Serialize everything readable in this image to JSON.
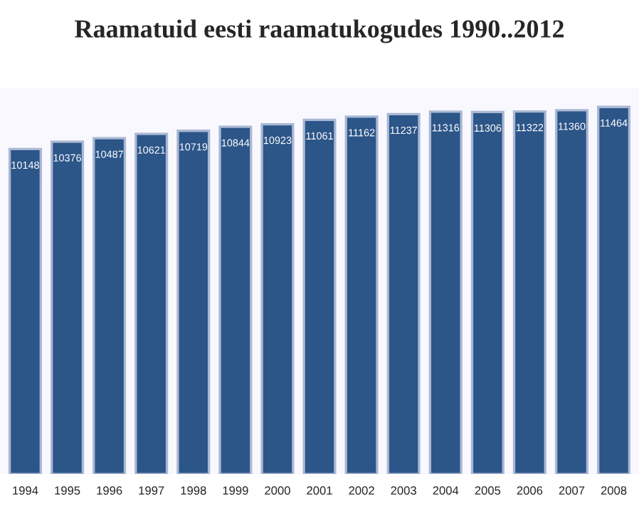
{
  "chart_data": {
    "type": "bar",
    "title": "Raamatuid eesti raamatukogudes 1990..2012",
    "categories": [
      "1994",
      "1995",
      "1996",
      "1997",
      "1998",
      "1999",
      "2000",
      "2001",
      "2002",
      "2003",
      "2004",
      "2005",
      "2006",
      "2007",
      "2008"
    ],
    "values": [
      10148,
      10376,
      10487,
      10621,
      10719,
      10844,
      10923,
      11061,
      11162,
      11237,
      11316,
      11306,
      11322,
      11360,
      11464
    ],
    "color": "#2c5588",
    "data_labels": true,
    "grid": false,
    "legend": false
  }
}
